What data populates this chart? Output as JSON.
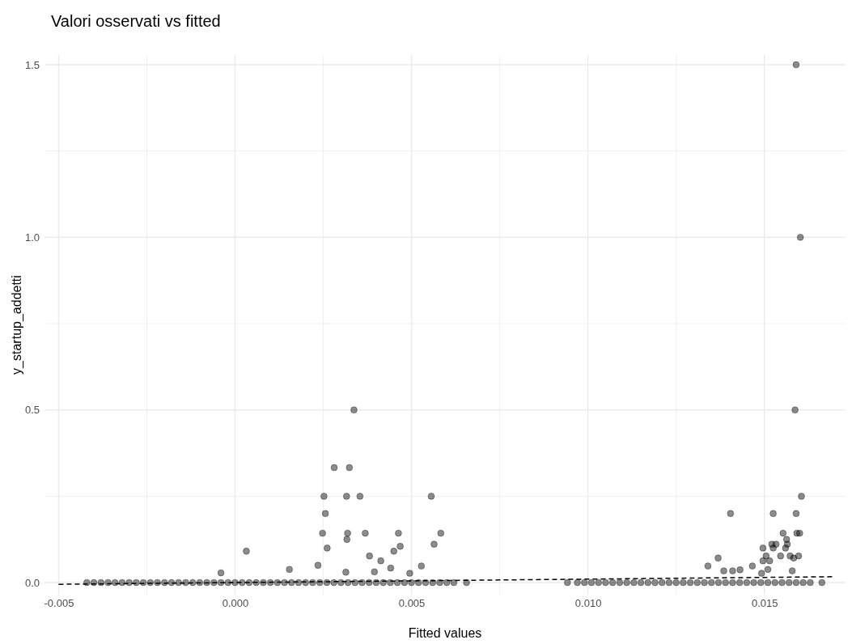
{
  "chart_data": {
    "type": "scatter",
    "title": "Valori osservati vs fitted",
    "xlabel": "Fitted values",
    "ylabel": "y_startup_addetti",
    "xlim": [
      -0.0054,
      0.0173
    ],
    "ylim": [
      -0.035,
      1.528
    ],
    "xticks": [
      {
        "value": -0.005,
        "label": "-0.005"
      },
      {
        "value": -0.0025,
        "label": null
      },
      {
        "value": 0,
        "label": "0.000"
      },
      {
        "value": 0.0025,
        "label": null
      },
      {
        "value": 0.005,
        "label": "0.005"
      },
      {
        "value": 0.0075,
        "label": null
      },
      {
        "value": 0.01,
        "label": "0.010"
      },
      {
        "value": 0.0125,
        "label": null
      },
      {
        "value": 0.015,
        "label": "0.015"
      }
    ],
    "yticks": [
      {
        "value": 0,
        "label": "0.0"
      },
      {
        "value": 0.25,
        "label": null
      },
      {
        "value": 0.5,
        "label": "0.5"
      },
      {
        "value": 0.75,
        "label": null
      },
      {
        "value": 1,
        "label": "1.0"
      },
      {
        "value": 1.25,
        "label": null
      },
      {
        "value": 1.5,
        "label": "1.5"
      }
    ],
    "grid": true,
    "series": [
      {
        "color": "#000000",
        "marker": "circle",
        "x": [
          -0.0042,
          -0.004,
          -0.0038,
          -0.0036,
          -0.0034,
          -0.0032,
          -0.003,
          -0.0028,
          -0.0026,
          -0.0024,
          -0.0022,
          -0.002,
          -0.0018,
          -0.0016,
          -0.0014,
          -0.0012,
          -0.001,
          -0.0008,
          -0.0006,
          -0.0004,
          -0.0002,
          0,
          0.0002,
          0.0004,
          0.0006,
          0.0008,
          0.001,
          0.0012,
          0.0014,
          0.0016,
          0.0018,
          0.002,
          0.0022,
          0.0024,
          0.0026,
          0.0028,
          0.003,
          0.0032,
          0.0034,
          0.0036,
          0.0038,
          0.004,
          0.0042,
          0.0044,
          0.0046,
          0.0048,
          0.005,
          0.0052,
          0.0054,
          0.0056,
          0.0058,
          0.006,
          0.0062,
          0.00656,
          0.00942,
          0.0097,
          0.0099,
          0.0101,
          0.0103,
          0.0105,
          0.0107,
          0.0109,
          0.0111,
          0.0113,
          0.0115,
          0.0117,
          0.0119,
          0.0121,
          0.0123,
          0.0125,
          0.0127,
          0.0129,
          0.0131,
          0.0133,
          0.0135,
          0.0137,
          0.0139,
          0.0141,
          0.0143,
          0.0145,
          0.0147,
          0.0149,
          0.0151,
          0.0153,
          0.0155,
          0.0157,
          0.0159,
          0.0161,
          0.0163,
          0.01663
        ],
        "values": [
          0,
          0,
          0,
          0,
          0,
          0,
          0,
          0,
          0,
          0,
          0,
          0,
          0,
          0,
          0,
          0,
          0,
          0,
          0,
          0,
          0,
          0,
          0,
          0,
          0,
          0,
          0,
          0,
          0,
          0,
          0,
          0,
          0,
          0,
          0,
          0,
          0,
          0,
          0,
          0,
          0,
          0,
          0,
          0,
          0,
          0,
          0,
          0,
          0,
          0,
          0,
          0,
          0,
          0,
          0,
          0,
          0,
          0,
          0,
          0,
          0,
          0,
          0,
          0,
          0,
          0,
          0,
          0,
          0,
          0,
          0,
          0,
          0,
          0,
          0,
          0,
          0,
          0,
          0,
          0,
          0,
          0,
          0,
          0,
          0,
          0,
          0,
          0,
          0,
          0
        ]
      },
      {
        "color": "#000000",
        "marker": "circle",
        "x": [
          0.00337,
          0.00281,
          0.00324,
          0.00252,
          0.00316,
          0.00354,
          0.00556,
          0.00256,
          0.00248,
          0.00319,
          0.00369,
          0.00463,
          0.00583,
          0.00317,
          0.00261,
          0.00468,
          0.00564,
          0.0045,
          0.00032,
          0.00381,
          0.00413,
          0.00441,
          0.00528,
          0.00235,
          0.00154,
          0.00495,
          -0.0004,
          0.00395,
          0.00314,
          0.0159,
          0.01602,
          0.01587,
          0.01605,
          0.01404,
          0.01525,
          0.0159,
          0.01553,
          0.01592,
          0.016,
          0.01563,
          0.01521,
          0.01533,
          0.01565,
          0.01496,
          0.01525,
          0.0156,
          0.01546,
          0.01573,
          0.01597,
          0.01583,
          0.01505,
          0.01496,
          0.01515,
          0.01369,
          0.0134,
          0.01466,
          0.0151,
          0.01492,
          0.01579,
          0.01385,
          0.0141,
          0.01431
        ],
        "values": [
          0.5,
          0.333,
          0.333,
          0.25,
          0.25,
          0.25,
          0.25,
          0.2,
          0.143,
          0.143,
          0.143,
          0.143,
          0.143,
          0.125,
          0.1,
          0.105,
          0.111,
          0.091,
          0.091,
          0.077,
          0.063,
          0.042,
          0.048,
          0.05,
          0.038,
          0.027,
          0.028,
          0.031,
          0.03,
          1.5,
          1.0,
          0.5,
          0.25,
          0.2,
          0.2,
          0.2,
          0.143,
          0.143,
          0.143,
          0.125,
          0.111,
          0.111,
          0.111,
          0.1,
          0.1,
          0.1,
          0.077,
          0.077,
          0.077,
          0.071,
          0.077,
          0.063,
          0.063,
          0.071,
          0.048,
          0.048,
          0.038,
          0.027,
          0.034,
          0.034,
          0.034,
          0.037
        ]
      },
      {
        "type": "line",
        "color": "#000000",
        "line_style": "dashed",
        "marker": "none",
        "x": [
          -0.005,
          0.017
        ],
        "values": [
          -0.005,
          0.017
        ]
      }
    ]
  }
}
